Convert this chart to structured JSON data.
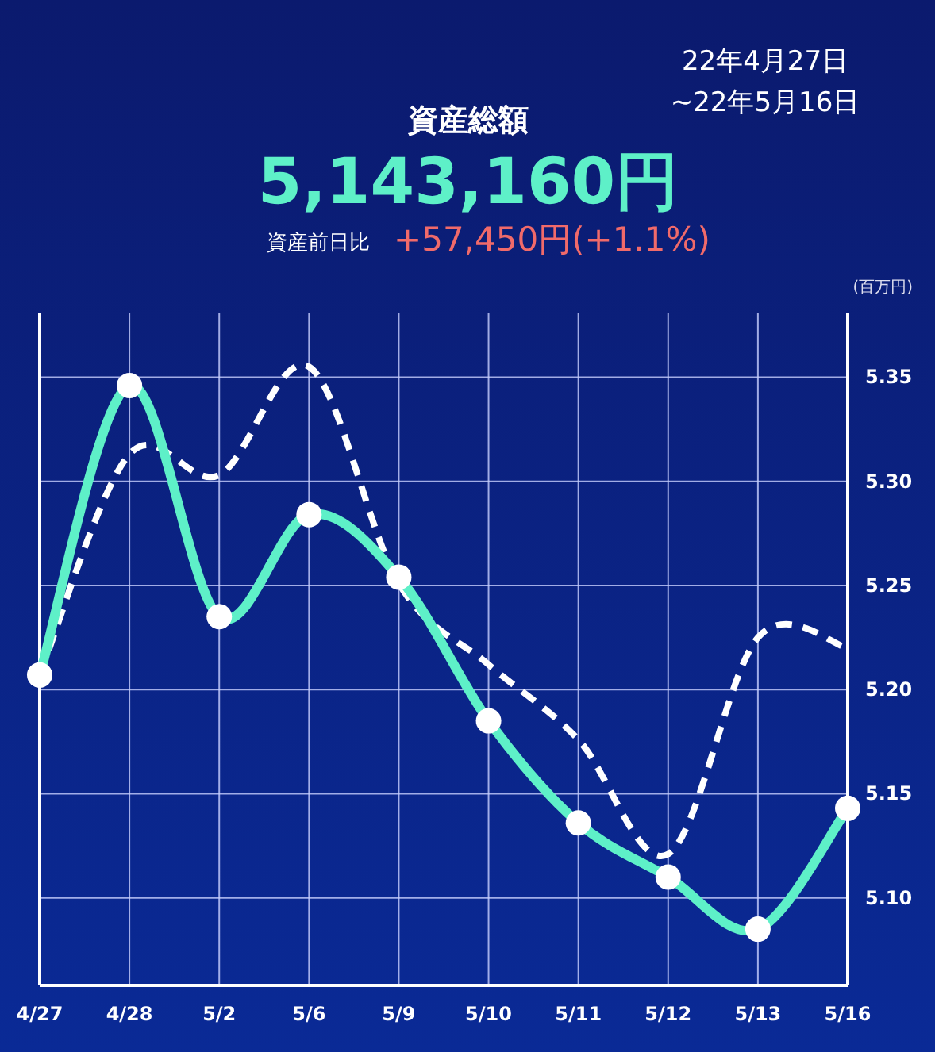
{
  "chart_data": {
    "type": "line",
    "title": "資産総額",
    "subtitle": "5,143,160円",
    "ylabel": "(百万円)",
    "annotations": [
      "22年4月27日",
      "~22年5月16日",
      "資産前日比",
      "+57,450円(+1.1%)"
    ],
    "categories": [
      "4/27",
      "4/28",
      "5/2",
      "5/6",
      "5/9",
      "5/10",
      "5/11",
      "5/12",
      "5/13",
      "5/16"
    ],
    "series": [
      {
        "color": "#5ef0c8",
        "marker": "circle",
        "line_style": "solid",
        "values": [
          5.207,
          5.346,
          5.235,
          5.284,
          5.254,
          5.185,
          5.136,
          5.11,
          5.085,
          5.143
        ]
      },
      {
        "color": "#ffffff",
        "marker": "none",
        "line_style": "dashed",
        "values": [
          5.207,
          5.313,
          5.303,
          5.355,
          5.251,
          5.212,
          5.176,
          5.121,
          5.225,
          5.22
        ]
      }
    ],
    "ylim": [
      5.058,
      5.381
    ],
    "yticks": [
      {
        "value": 5.1,
        "label": "5.10"
      },
      5.15,
      {
        "value": 5.2,
        "label": "5.20"
      },
      5.25,
      {
        "value": 5.3,
        "label": "5.30"
      },
      5.35
    ],
    "grid": true
  }
}
